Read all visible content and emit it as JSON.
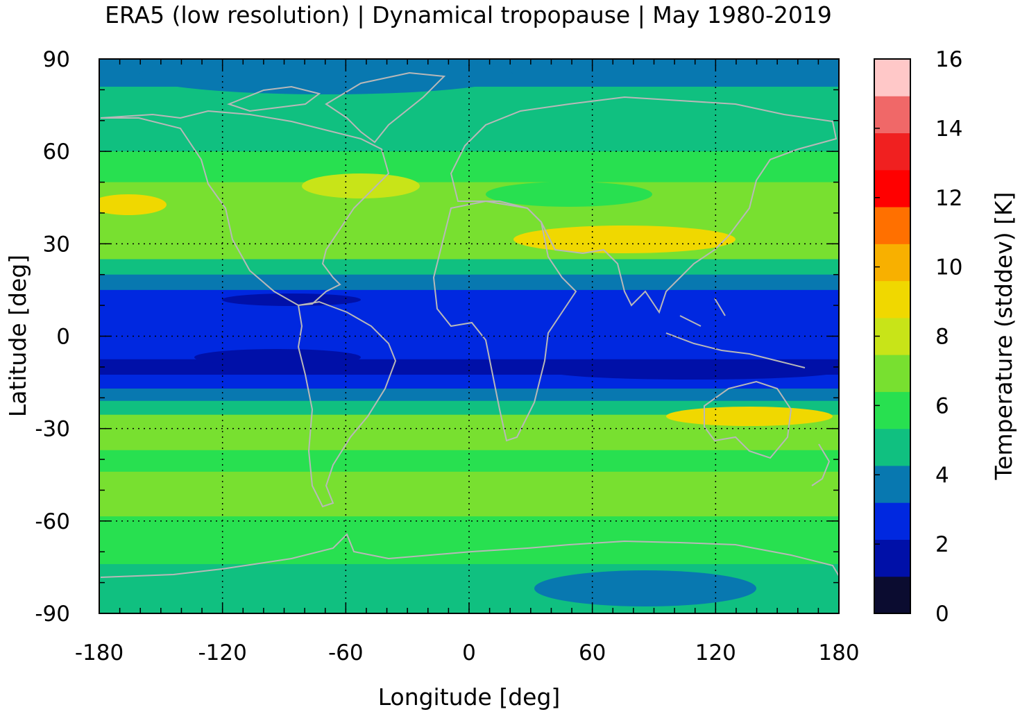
{
  "chart_data": {
    "type": "heatmap",
    "title": "ERA5 (low resolution) | Dynamical tropopause | May 1980-2019",
    "xlabel": "Longitude [deg]",
    "ylabel": "Latitude [deg]",
    "xlim": [
      -180,
      180
    ],
    "ylim": [
      -90,
      90
    ],
    "x_ticks": [
      "-180",
      "-120",
      "-60",
      "0",
      "60",
      "120",
      "180"
    ],
    "y_ticks": [
      "90",
      "60",
      "30",
      "0",
      "-30",
      "-60",
      "-90"
    ],
    "grid": true,
    "colorbar": {
      "label": "Temperature (stddev) [K]",
      "range": [
        0,
        16
      ],
      "tick_labels": [
        "0",
        "2",
        "4",
        "6",
        "8",
        "10",
        "12",
        "14",
        "16"
      ],
      "colors": [
        "#0b0c30",
        "#0010a8",
        "#0028e0",
        "#0878b0",
        "#10c080",
        "#28e050",
        "#78e030",
        "#c8e418",
        "#f0d800",
        "#f8b000",
        "#ff7000",
        "#ff0000",
        "#f02020",
        "#f06868",
        "#ffc8c8"
      ]
    },
    "lat_band_means": [
      {
        "lat": 87,
        "value": 4.0
      },
      {
        "lat": 75,
        "value": 5.0
      },
      {
        "lat": 65,
        "value": 5.2
      },
      {
        "lat": 55,
        "value": 6.2
      },
      {
        "lat": 45,
        "value": 6.8
      },
      {
        "lat": 35,
        "value": 6.4
      },
      {
        "lat": 28,
        "value": 6.6
      },
      {
        "lat": 22,
        "value": 5.0
      },
      {
        "lat": 18,
        "value": 3.2
      },
      {
        "lat": 12,
        "value": 2.4
      },
      {
        "lat": 5,
        "value": 2.3
      },
      {
        "lat": 0,
        "value": 2.4
      },
      {
        "lat": -5,
        "value": 2.2
      },
      {
        "lat": -10,
        "value": 2.0
      },
      {
        "lat": -15,
        "value": 2.4
      },
      {
        "lat": -19,
        "value": 3.5
      },
      {
        "lat": -23,
        "value": 5.0
      },
      {
        "lat": -28,
        "value": 7.3
      },
      {
        "lat": -34,
        "value": 6.5
      },
      {
        "lat": -40,
        "value": 6.3
      },
      {
        "lat": -48,
        "value": 7.0
      },
      {
        "lat": -55,
        "value": 6.5
      },
      {
        "lat": -62,
        "value": 6.2
      },
      {
        "lat": -70,
        "value": 5.5
      },
      {
        "lat": -78,
        "value": 4.8
      },
      {
        "lat": -86,
        "value": 4.4
      }
    ]
  }
}
